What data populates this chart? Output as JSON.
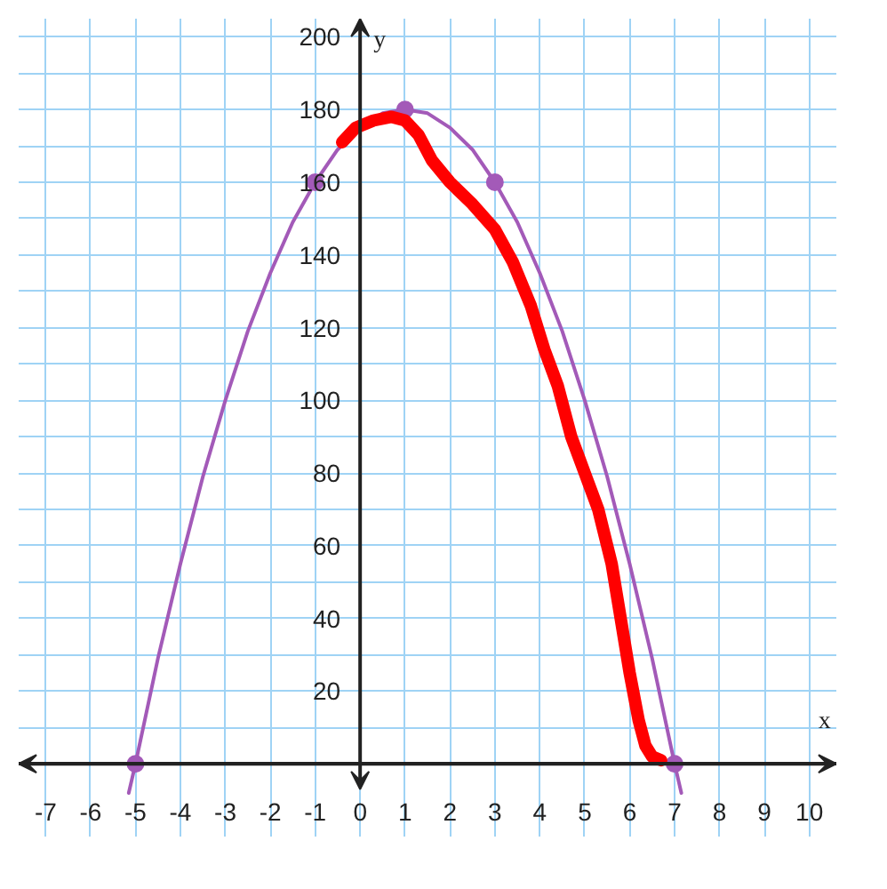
{
  "chart_data": {
    "type": "line",
    "xlabel": "x",
    "ylabel": "y",
    "xlim": [
      -7.6,
      10.6
    ],
    "ylim": [
      -20,
      205
    ],
    "xticks": [
      -7,
      -6,
      -5,
      -4,
      -3,
      -2,
      -1,
      0,
      1,
      2,
      3,
      4,
      5,
      6,
      7,
      8,
      9,
      10
    ],
    "yticks": [
      {
        "value": 10,
        "label": null
      },
      20,
      {
        "value": 30,
        "label": null
      },
      40,
      {
        "value": 50,
        "label": null
      },
      60,
      {
        "value": 70,
        "label": null
      },
      80,
      {
        "value": 90,
        "label": null
      },
      100,
      {
        "value": 110,
        "label": null
      },
      120,
      {
        "value": 130,
        "label": null
      },
      140,
      {
        "value": 150,
        "label": null
      },
      160,
      {
        "value": 170,
        "label": null
      },
      180,
      {
        "value": 190,
        "label": null
      },
      200
    ],
    "grid": true,
    "series": [
      {
        "color": "#a35ab8",
        "x": [
          -5.15,
          -5,
          -4.5,
          -4,
          -3.5,
          -3,
          -2.5,
          -2,
          -1.5,
          -1,
          -0.5,
          0,
          0.5,
          1,
          1.5,
          2,
          2.5,
          3,
          3.5,
          4,
          4.5,
          5,
          5.5,
          6,
          6.5,
          7,
          7.15
        ],
        "values": [
          -8,
          0,
          29,
          55,
          79,
          100,
          119,
          135,
          149,
          160,
          169,
          175,
          179,
          180,
          179,
          175,
          169,
          160,
          149,
          135,
          119,
          100,
          79,
          55,
          29,
          0,
          -8
        ]
      },
      {
        "type": "scatter",
        "color": "#a35ab8",
        "marker": "circle",
        "x": [
          -5,
          -1,
          1,
          3,
          7
        ],
        "values": [
          0,
          160,
          180,
          160,
          0
        ]
      },
      {
        "color": "#ff0000",
        "x": [
          -0.4,
          -0.1,
          0.3,
          0.7,
          1.0,
          1.3,
          1.6,
          2.0,
          2.5,
          3.0,
          3.4,
          3.8,
          4.1,
          4.4,
          4.7,
          5.0,
          5.3,
          5.6,
          5.8,
          6.0,
          6.2,
          6.35,
          6.5,
          6.7
        ],
        "values": [
          171,
          175,
          177,
          178,
          177,
          173,
          166,
          160,
          154,
          147,
          138,
          126,
          114,
          104,
          90,
          80,
          70,
          55,
          40,
          25,
          12,
          5,
          2,
          1
        ]
      }
    ]
  }
}
